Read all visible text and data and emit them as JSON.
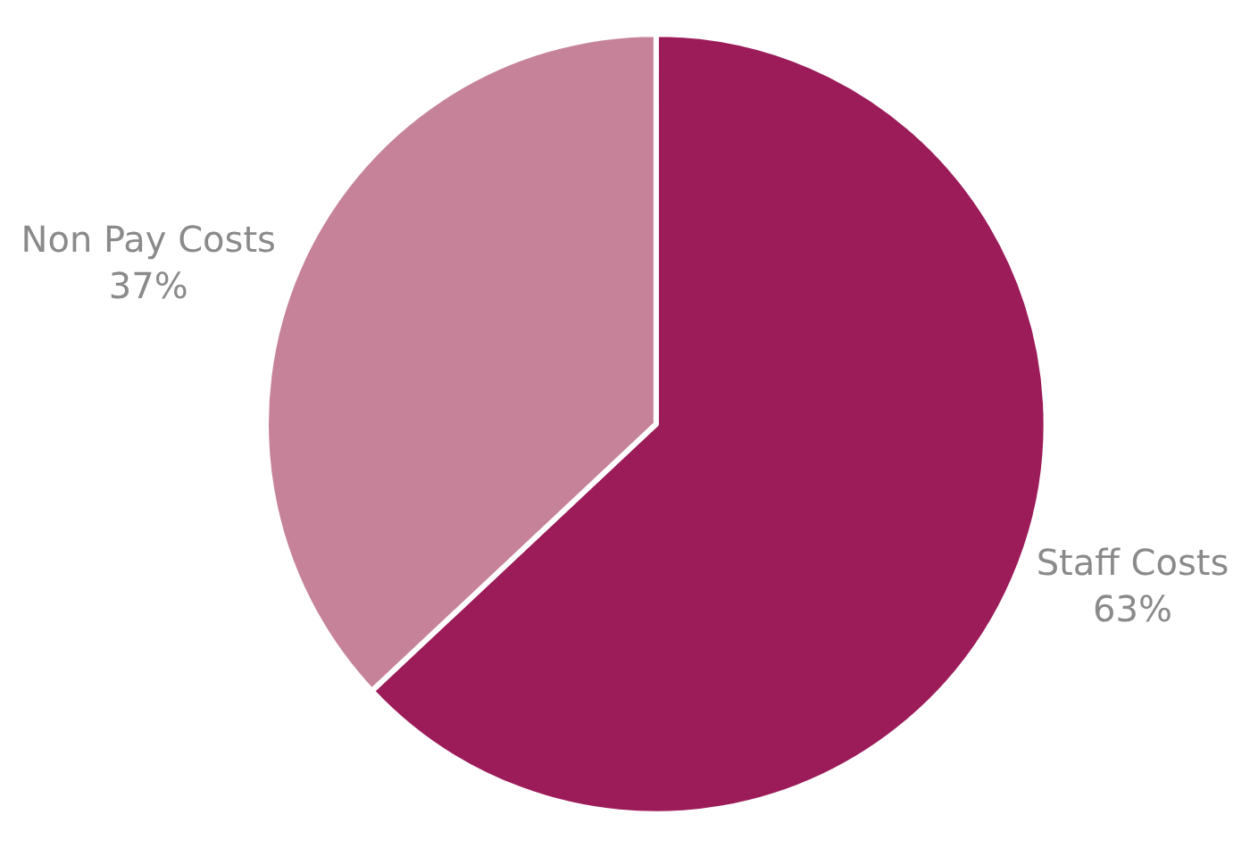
{
  "chart_data": {
    "type": "pie",
    "categories": [
      "Staff Costs",
      "Non Pay Costs"
    ],
    "values": [
      63,
      37
    ],
    "colors": [
      "#9c1c5a",
      "#c68299"
    ],
    "value_labels": [
      "63%",
      "37%"
    ],
    "legend": false
  }
}
